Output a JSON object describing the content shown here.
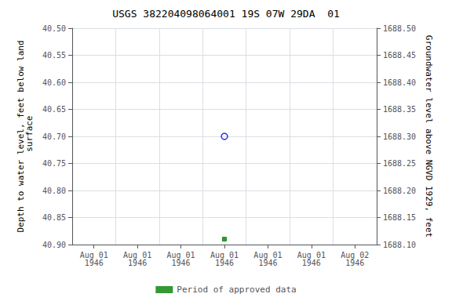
{
  "chart_data": {
    "type": "scatter",
    "title": "USGS 382204098064001 19S 07W 29DA  01",
    "ylabel": "Depth to water level, feet below land\n surface",
    "y2label": "Groundwater level above NGVD 1929, feet",
    "categories": [
      "Aug 01\n1946",
      "Aug 01\n1946",
      "Aug 01\n1946",
      "Aug 01\n1946",
      "Aug 01\n1946",
      "Aug 01\n1946",
      "Aug 02\n1946"
    ],
    "series": [
      {
        "color": "#0000cc",
        "marker": "open_circle",
        "values": [
          null,
          null,
          null,
          40.7,
          null,
          null,
          null
        ]
      },
      {
        "name": "Period of approved data",
        "color": "#008000",
        "marker": "square",
        "values": [
          null,
          null,
          null,
          40.89,
          null,
          null,
          null
        ]
      }
    ],
    "ylim": [
      40.9,
      40.5
    ],
    "yticks": [
      {
        "value": 40.5,
        "label": "40.50"
      },
      {
        "value": 40.55,
        "label": "40.55"
      },
      {
        "value": 40.6,
        "label": "40.60"
      },
      {
        "value": 40.65,
        "label": "40.65"
      },
      {
        "value": 40.7,
        "label": "40.70"
      },
      {
        "value": 40.75,
        "label": "40.75"
      },
      {
        "value": 40.8,
        "label": "40.80"
      },
      {
        "value": 40.85,
        "label": "40.85"
      },
      {
        "value": 40.9,
        "label": "40.90"
      }
    ],
    "y2lim": [
      1688.1,
      1688.5
    ],
    "y2ticks": [
      {
        "value": 1688.1,
        "label": "1688.10"
      },
      {
        "value": 1688.15,
        "label": "1688.15"
      },
      {
        "value": 1688.2,
        "label": "1688.20"
      },
      {
        "value": 1688.25,
        "label": "1688.25"
      },
      {
        "value": 1688.3,
        "label": "1688.30"
      },
      {
        "value": 1688.35,
        "label": "1688.35"
      },
      {
        "value": 1688.4,
        "label": "1688.40"
      },
      {
        "value": 1688.45,
        "label": "1688.45"
      },
      {
        "value": 1688.5,
        "label": "1688.50"
      }
    ],
    "grid": true,
    "legend": "bottom"
  }
}
